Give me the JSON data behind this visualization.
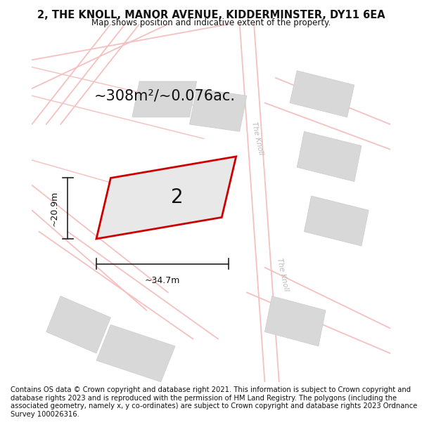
{
  "title": "2, THE KNOLL, MANOR AVENUE, KIDDERMINSTER, DY11 6EA",
  "subtitle": "Map shows position and indicative extent of the property.",
  "area_text": "~308m²/~0.076ac.",
  "width_text": "~34.7m",
  "height_text": "~20.9m",
  "label_number": "2",
  "footer_text": "Contains OS data © Crown copyright and database right 2021. This information is subject to Crown copyright and database rights 2023 and is reproduced with the permission of HM Land Registry. The polygons (including the associated geometry, namely x, y co-ordinates) are subject to Crown copyright and database rights 2023 Ordnance Survey 100026316.",
  "bg_color": "#ffffff",
  "road_color": "#f5c0c0",
  "building_color": "#d8d8d8",
  "plot_color": "#e8e8e8",
  "plot_border_color": "#cc0000",
  "dim_color": "#222222",
  "street_label_color": "#bbbbbb",
  "title_fontsize": 10.5,
  "subtitle_fontsize": 8.5,
  "area_fontsize": 15,
  "number_fontsize": 20,
  "dim_fontsize": 9,
  "footer_fontsize": 7.2
}
